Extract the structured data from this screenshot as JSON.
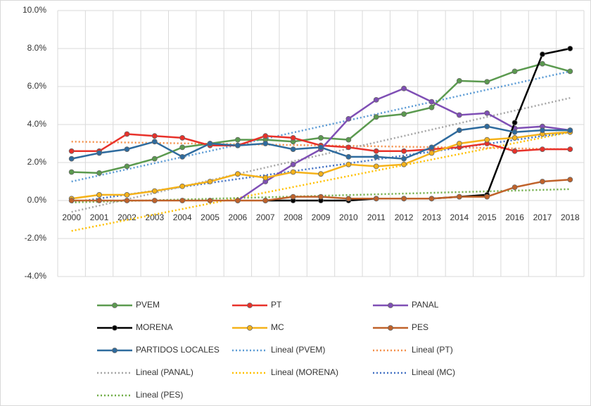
{
  "chart_data": {
    "type": "line",
    "categories": [
      "2000",
      "2001",
      "2002",
      "2003",
      "2004",
      "2005",
      "2006",
      "2007",
      "2008",
      "2009",
      "2010",
      "2011",
      "2012",
      "2013",
      "2014",
      "2015",
      "2016",
      "2017",
      "2018"
    ],
    "ylim": [
      -4,
      10
    ],
    "yticks": [
      {
        "value": 10,
        "label": "10.0%"
      },
      {
        "value": 8,
        "label": "8.0%"
      },
      {
        "value": 6,
        "label": "6.0%"
      },
      {
        "value": 4,
        "label": "4.0%"
      },
      {
        "value": 2,
        "label": "2.0%"
      },
      {
        "value": 0,
        "label": "0.0%"
      },
      {
        "value": -2,
        "label": "-2.0%"
      },
      {
        "value": -4,
        "label": "-4.0%"
      }
    ],
    "grid": true,
    "legend": "bottom",
    "series": [
      {
        "name": "PVEM",
        "color": "#5b9a4f",
        "values": [
          1.5,
          1.45,
          1.8,
          2.2,
          2.8,
          3.0,
          3.2,
          3.2,
          3.1,
          3.3,
          3.2,
          4.4,
          4.55,
          4.9,
          6.3,
          6.25,
          6.8,
          7.2,
          6.8
        ]
      },
      {
        "name": "PT",
        "color": "#e8312a",
        "values": [
          2.6,
          2.6,
          3.5,
          3.4,
          3.3,
          2.9,
          2.9,
          3.4,
          3.3,
          2.9,
          2.8,
          2.6,
          2.6,
          2.7,
          2.8,
          3.0,
          2.6,
          2.7,
          2.7
        ]
      },
      {
        "name": "PANAL",
        "color": "#7f4fb5",
        "values": [
          null,
          null,
          null,
          null,
          null,
          null,
          0,
          1.0,
          1.9,
          2.7,
          4.3,
          5.3,
          5.9,
          5.2,
          4.5,
          4.6,
          3.8,
          3.9,
          3.7
        ]
      },
      {
        "name": "MORENA",
        "color": "#000000",
        "values": [
          null,
          null,
          null,
          null,
          null,
          null,
          null,
          0,
          0,
          0,
          0,
          0.1,
          0.1,
          0.1,
          0.2,
          0.3,
          4.1,
          7.7,
          8.0
        ]
      },
      {
        "name": "MC",
        "color": "#f5b21a",
        "values": [
          0.1,
          0.3,
          0.3,
          0.5,
          0.75,
          1.0,
          1.4,
          1.2,
          1.5,
          1.4,
          1.9,
          1.8,
          1.9,
          2.5,
          3.0,
          3.2,
          3.3,
          3.5,
          3.6
        ]
      },
      {
        "name": "PES",
        "color": "#c0622a",
        "values": [
          0,
          0,
          0,
          0,
          0,
          0,
          0,
          0,
          0.2,
          0.2,
          0.1,
          0.1,
          0.1,
          0.1,
          0.2,
          0.2,
          0.7,
          1.0,
          1.1
        ]
      },
      {
        "name": "PARTIDOS LOCALES",
        "color": "#2e6b9e",
        "values": [
          2.2,
          2.5,
          2.7,
          3.1,
          2.3,
          3.0,
          2.9,
          3.0,
          2.7,
          2.8,
          2.3,
          2.3,
          2.2,
          2.8,
          3.7,
          3.9,
          3.6,
          3.7,
          3.7
        ]
      }
    ],
    "trendlines": [
      {
        "name": "Lineal (PVEM)",
        "color": "#5b9bd5",
        "values": [
          1.0,
          6.8
        ]
      },
      {
        "name": "Lineal (PT)",
        "color": "#f4904a",
        "values": [
          3.1,
          2.7
        ]
      },
      {
        "name": "Lineal (PANAL)",
        "color": "#a6a6a6",
        "values": [
          -0.6,
          5.4
        ]
      },
      {
        "name": "Lineal (MORENA)",
        "color": "#ffc000",
        "values": [
          -1.6,
          3.6
        ]
      },
      {
        "name": "Lineal (MC)",
        "color": "#4472c4",
        "values": [
          -0.1,
          3.6
        ]
      },
      {
        "name": "Lineal (PES)",
        "color": "#70ad47",
        "values": [
          -0.1,
          0.6
        ]
      }
    ]
  }
}
